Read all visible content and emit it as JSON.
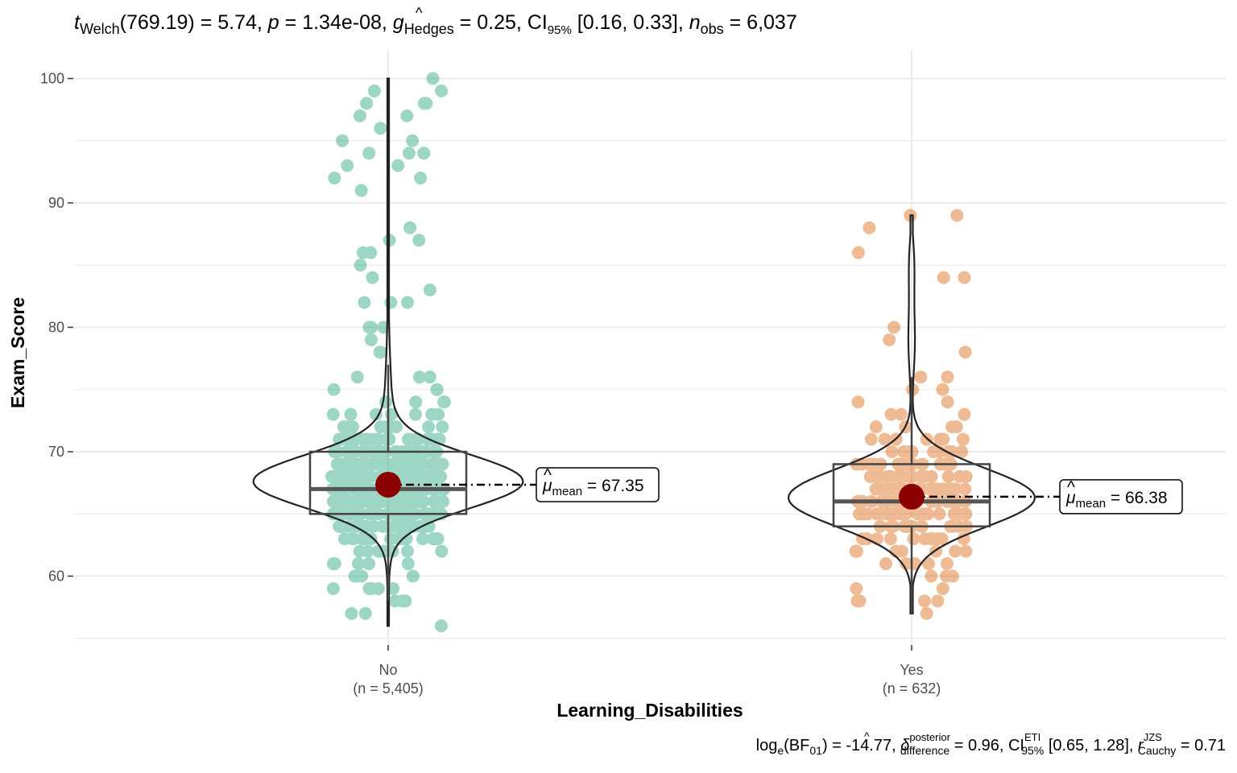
{
  "subtitle": {
    "t_sym": "t",
    "t_sub": "Welch",
    "t_val": "(769.19) = 5.74, ",
    "p_sym": "p",
    "p_val": " = 1.34e-08, ",
    "g_hat": "^",
    "g_sym": "g",
    "g_sub": "Hedges",
    "g_val": " = 0.25, CI",
    "ci_sub": "95%",
    "ci_val": " [0.16, 0.33], ",
    "n_sym": "n",
    "n_sub": "obs",
    "n_val": " = 6,037"
  },
  "caption": {
    "log_main": "log",
    "log_sub": "e",
    "bf_main": "(BF",
    "bf_sub": "01",
    "bf_val": ") = -14.77, ",
    "d_hat": "^",
    "d_sym": "δ",
    "d_sup": "posterior",
    "d_sub": "difference",
    "d_val": " = 0.96, CI",
    "ci_sup": "ETI",
    "ci_sub": "95%",
    "ci_val": " [0.65, 1.28], ",
    "r_sym": "r",
    "r_sup": "JZS",
    "r_sub": "Cauchy",
    "r_val": " = 0.71"
  },
  "mean_label": {
    "hat": "^",
    "mu": "μ",
    "sub": "mean"
  },
  "chart_data": {
    "type": "violin",
    "xlabel": "Learning_Disabilities",
    "ylabel": "Exam_Score",
    "ylim": [
      55,
      101
    ],
    "yticks": [
      60,
      70,
      80,
      90,
      100
    ],
    "grid": true,
    "groups": [
      {
        "name": "No",
        "n_label": "(n = 5,405)",
        "color": "#1b9e77",
        "mean": 67.35,
        "mean_text": " = 67.35",
        "box": {
          "q1": 65,
          "median": 67,
          "q3": 70,
          "whisker_low": 58,
          "whisker_high": 77
        },
        "min": 56,
        "max": 100,
        "outliers": [
          56,
          57,
          57,
          58,
          58,
          58,
          59,
          59,
          78,
          78,
          79,
          80,
          80,
          80,
          82,
          82,
          82,
          83,
          84,
          85,
          86,
          86,
          87,
          87,
          88,
          91,
          92,
          92,
          93,
          93,
          94,
          94,
          94,
          95,
          95,
          96,
          97,
          97,
          98,
          98,
          98,
          99,
          99,
          100
        ]
      },
      {
        "name": "Yes",
        "n_label": "(n = 632)",
        "color": "#d95f02",
        "mean": 66.38,
        "mean_text": " = 66.38",
        "box": {
          "q1": 64,
          "median": 66,
          "q3": 69,
          "whisker_low": 57,
          "whisker_high": 76
        },
        "min": 57,
        "max": 89,
        "outliers": [
          57,
          58,
          58,
          58,
          78,
          79,
          80,
          84,
          84,
          86,
          88,
          89,
          89
        ]
      }
    ],
    "mean_color": "#8b0000"
  }
}
